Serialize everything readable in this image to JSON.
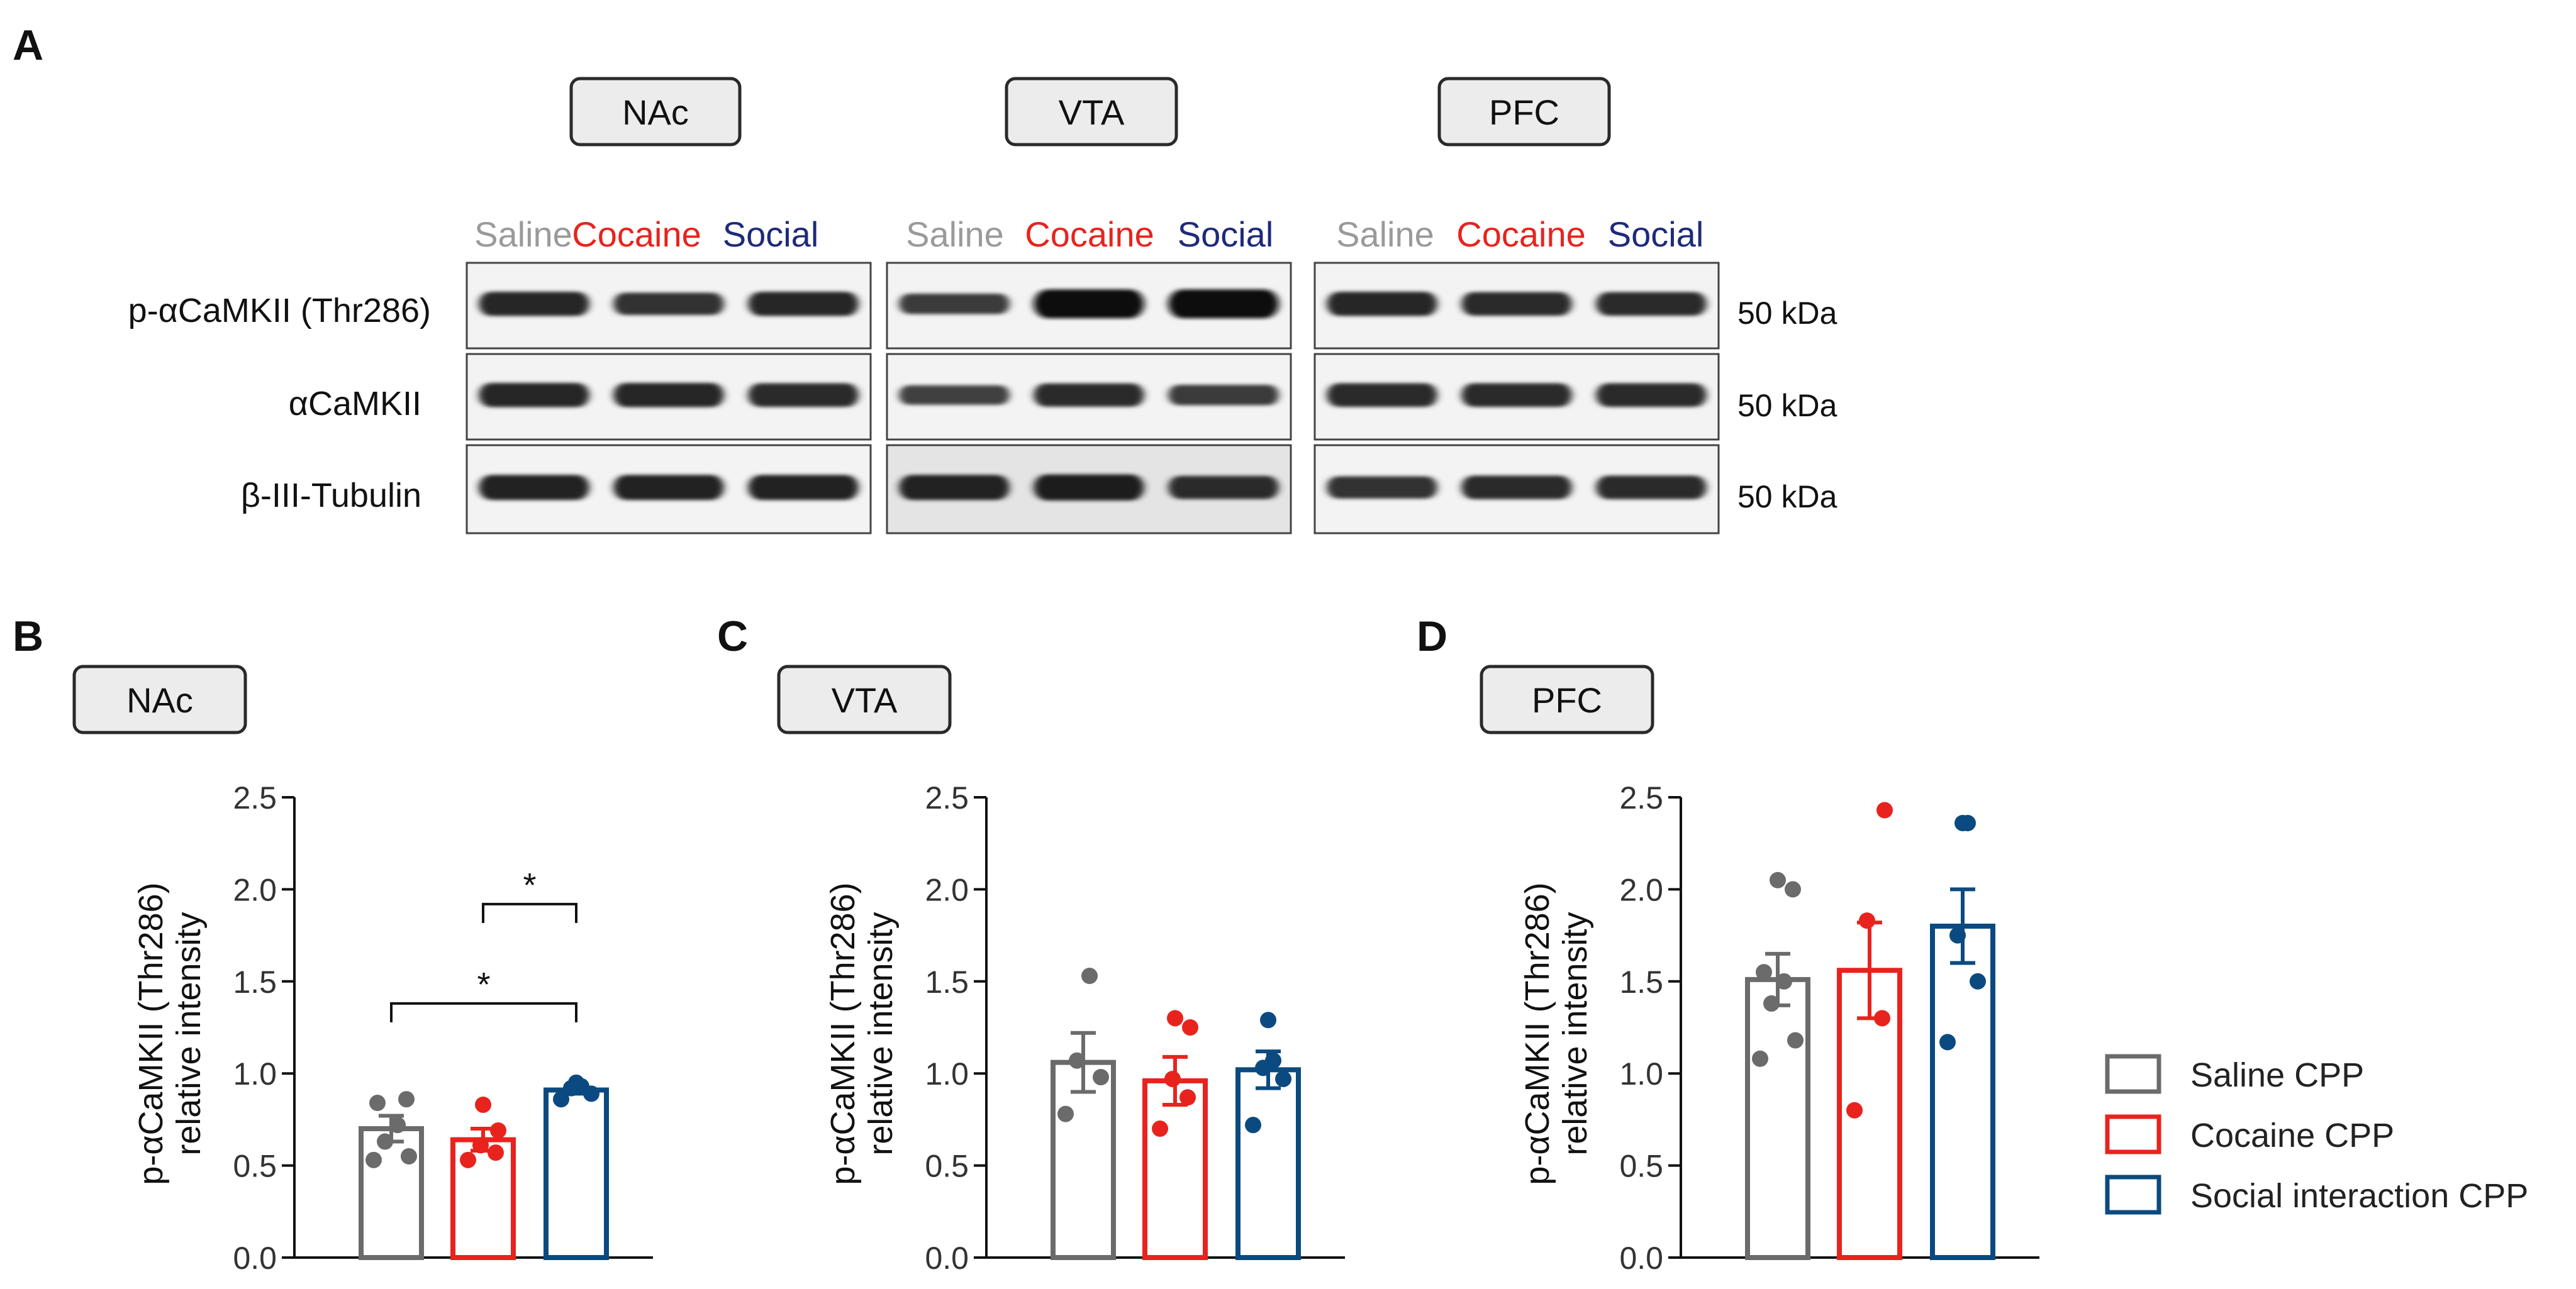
{
  "colors": {
    "saline": "#6b6b6b",
    "cocaine": "#e8231e",
    "social": "#0a4a80",
    "saline_label": "#9a9a9a",
    "cocaine_label": "#e8231e",
    "social_label": "#1e2a7a"
  },
  "panel_a": {
    "letter": "A",
    "regions": [
      "NAc",
      "VTA",
      "PFC"
    ],
    "lane_labels": [
      "Saline",
      "Cocaine",
      "Social"
    ],
    "row_labels": [
      "p-αCaMKII (Thr286)",
      "αCaMKII",
      "β-III-Tubulin"
    ],
    "kda_labels": [
      "50 kDa",
      "50 kDa",
      "50 kDa"
    ],
    "band_intensity": [
      [
        [
          0.75,
          0.65,
          0.75
        ],
        [
          0.55,
          1.0,
          1.0
        ],
        [
          0.75,
          0.72,
          0.72
        ]
      ],
      [
        [
          0.75,
          0.75,
          0.72
        ],
        [
          0.5,
          0.7,
          0.55
        ],
        [
          0.72,
          0.72,
          0.72
        ]
      ],
      [
        [
          0.8,
          0.8,
          0.8
        ],
        [
          0.8,
          0.85,
          0.7
        ],
        [
          0.65,
          0.72,
          0.72
        ]
      ]
    ]
  },
  "chart_data": [
    {
      "type": "bar",
      "letter": "B",
      "region": "NAc",
      "ylabel": "p-αCaMKII (Thr286)",
      "ylabel2": "relative intensity",
      "ylim": [
        0,
        2.5
      ],
      "yticks": [
        "0.0",
        "0.5",
        "1.0",
        "1.5",
        "2.0",
        "2.5"
      ],
      "series": [
        {
          "name": "Saline CPP",
          "color_key": "saline",
          "mean": 0.7,
          "sem": 0.07,
          "points": [
            0.53,
            0.55,
            0.63,
            0.72,
            0.84,
            0.86
          ]
        },
        {
          "name": "Cocaine CPP",
          "color_key": "cocaine",
          "mean": 0.64,
          "sem": 0.06,
          "points": [
            0.53,
            0.57,
            0.61,
            0.69,
            0.83
          ]
        },
        {
          "name": "Social interaction CPP",
          "color_key": "social",
          "mean": 0.91,
          "sem": 0.02,
          "points": [
            0.86,
            0.89,
            0.92,
            0.93,
            0.95
          ]
        }
      ],
      "significance": [
        {
          "from": 1,
          "to": 2,
          "y": 1.92,
          "label": "*"
        },
        {
          "from": 0,
          "to": 2,
          "y": 1.38,
          "label": "*"
        }
      ]
    },
    {
      "type": "bar",
      "letter": "C",
      "region": "VTA",
      "ylabel": "p-αCaMKII (Thr286)",
      "ylabel2": "relative intensity",
      "ylim": [
        0,
        2.5
      ],
      "yticks": [
        "0.0",
        "0.5",
        "1.0",
        "1.5",
        "2.0",
        "2.5"
      ],
      "series": [
        {
          "name": "Saline CPP",
          "color_key": "saline",
          "mean": 1.06,
          "sem": 0.16,
          "points": [
            0.78,
            0.98,
            1.07,
            1.53
          ]
        },
        {
          "name": "Cocaine CPP",
          "color_key": "cocaine",
          "mean": 0.96,
          "sem": 0.13,
          "points": [
            0.7,
            0.87,
            0.97,
            1.25,
            1.3
          ]
        },
        {
          "name": "Social interaction CPP",
          "color_key": "social",
          "mean": 1.02,
          "sem": 0.1,
          "points": [
            0.72,
            0.97,
            1.03,
            1.07,
            1.29
          ]
        }
      ],
      "significance": []
    },
    {
      "type": "bar",
      "letter": "D",
      "region": "PFC",
      "ylabel": "p-αCaMKII (Thr286)",
      "ylabel2": "relative intensity",
      "ylim": [
        0,
        2.5
      ],
      "yticks": [
        "0.0",
        "0.5",
        "1.0",
        "1.5",
        "2.0",
        "2.5"
      ],
      "series": [
        {
          "name": "Saline CPP",
          "color_key": "saline",
          "mean": 1.51,
          "sem": 0.14,
          "points": [
            1.08,
            1.18,
            1.38,
            1.5,
            1.55,
            2.0,
            2.05
          ]
        },
        {
          "name": "Cocaine CPP",
          "color_key": "cocaine",
          "mean": 1.56,
          "sem": 0.26,
          "points": [
            0.8,
            1.3,
            1.83,
            2.43
          ]
        },
        {
          "name": "Social interaction CPP",
          "color_key": "social",
          "mean": 1.8,
          "sem": 0.2,
          "points": [
            1.17,
            1.5,
            1.75,
            2.36,
            2.36
          ]
        }
      ],
      "significance": []
    }
  ],
  "legend": {
    "position": "right",
    "items": [
      {
        "label": "Saline CPP",
        "color_key": "saline"
      },
      {
        "label": "Cocaine CPP",
        "color_key": "cocaine"
      },
      {
        "label": "Social interaction CPP",
        "color_key": "social"
      }
    ]
  }
}
